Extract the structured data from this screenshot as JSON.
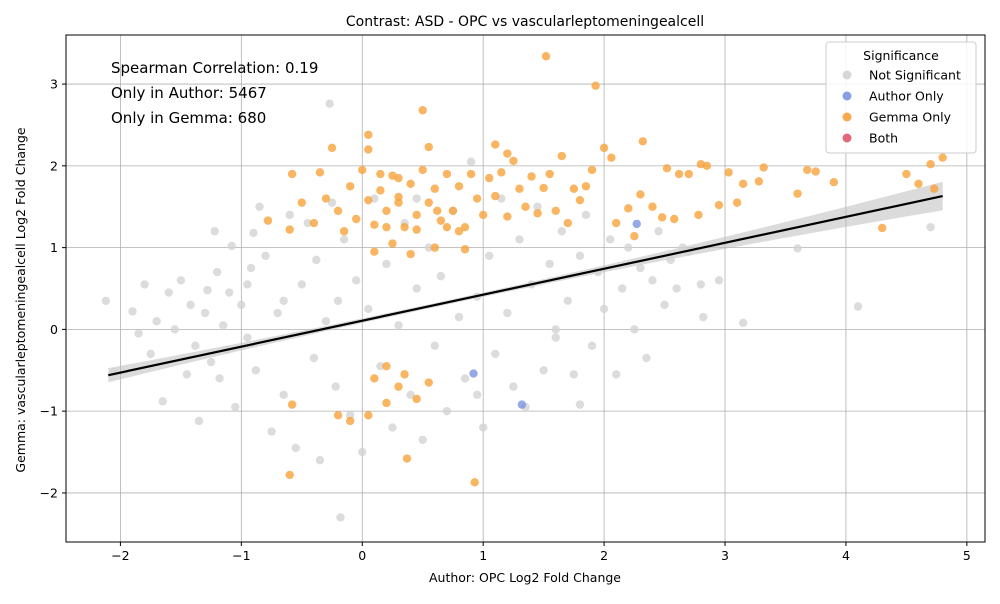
{
  "chart_data": {
    "type": "scatter",
    "title": "Contrast: ASD - OPC vs vascularleptomeningealcell",
    "xlabel": "Author: OPC Log2 Fold Change",
    "ylabel": "Gemma: vascularleptomeningealcell Log2 Fold Change",
    "xlim": [
      -2.45,
      5.15
    ],
    "ylim": [
      -2.6,
      3.6
    ],
    "xticks": [
      {
        "value": -2,
        "label": "−2"
      },
      {
        "value": -1,
        "label": "−1"
      },
      {
        "value": 0,
        "label": "0"
      },
      {
        "value": 1,
        "label": "1"
      },
      {
        "value": 2,
        "label": "2"
      },
      {
        "value": 3,
        "label": "3"
      },
      {
        "value": 4,
        "label": "4"
      },
      {
        "value": 5,
        "label": "5"
      }
    ],
    "yticks": [
      {
        "value": -2,
        "label": "−2"
      },
      {
        "value": -1,
        "label": "−1"
      },
      {
        "value": 0,
        "label": "0"
      },
      {
        "value": 1,
        "label": "1"
      },
      {
        "value": 2,
        "label": "2"
      },
      {
        "value": 3,
        "label": "3"
      }
    ],
    "grid": true,
    "legend": {
      "title": "Significance",
      "position": "top-right",
      "entries": [
        {
          "label": "Not Significant",
          "color": "#d3d3d3"
        },
        {
          "label": "Author Only",
          "color": "#7b93e0"
        },
        {
          "label": "Gemma Only",
          "color": "#f7a23b"
        },
        {
          "label": "Both",
          "color": "#dc5a6e"
        }
      ]
    },
    "annotations": [
      "Spearman Correlation: 0.19",
      "Only in Author: 5467",
      "Only in Gemma: 680"
    ],
    "regression": {
      "color": "#000000",
      "band_color": "#bdbdbd",
      "start": [
        -2.1,
        -0.56
      ],
      "end": [
        4.8,
        1.63
      ]
    },
    "series": [
      {
        "name": "Not Significant",
        "color": "#d3d3d3",
        "points": [
          [
            -2.12,
            0.35
          ],
          [
            -2.05,
            -0.52
          ],
          [
            -1.9,
            0.22
          ],
          [
            -1.85,
            -0.05
          ],
          [
            -1.8,
            0.55
          ],
          [
            -1.75,
            -0.3
          ],
          [
            -1.7,
            0.1
          ],
          [
            -1.65,
            -0.88
          ],
          [
            -1.6,
            0.45
          ],
          [
            -1.55,
            0.0
          ],
          [
            -1.5,
            0.6
          ],
          [
            -1.45,
            -0.55
          ],
          [
            -1.42,
            0.3
          ],
          [
            -1.38,
            -0.2
          ],
          [
            -1.35,
            -1.12
          ],
          [
            -1.3,
            0.2
          ],
          [
            -1.28,
            0.48
          ],
          [
            -1.25,
            -0.4
          ],
          [
            -1.22,
            1.2
          ],
          [
            -1.2,
            0.7
          ],
          [
            -1.18,
            -0.6
          ],
          [
            -1.15,
            0.05
          ],
          [
            -1.12,
            -0.25
          ],
          [
            -1.1,
            0.45
          ],
          [
            -1.08,
            1.02
          ],
          [
            -1.05,
            -0.95
          ],
          [
            -1.0,
            0.3
          ],
          [
            -0.95,
            -0.1
          ],
          [
            -0.92,
            0.75
          ],
          [
            -0.9,
            1.18
          ],
          [
            -0.88,
            -0.5
          ],
          [
            -0.85,
            1.5
          ],
          [
            -0.8,
            0.9
          ],
          [
            -0.75,
            -1.25
          ],
          [
            -0.7,
            0.2
          ],
          [
            -0.65,
            -0.8
          ],
          [
            -0.6,
            1.4
          ],
          [
            -0.55,
            -1.45
          ],
          [
            -0.5,
            0.55
          ],
          [
            -0.45,
            1.3
          ],
          [
            -0.4,
            -0.35
          ],
          [
            -0.38,
            0.85
          ],
          [
            -0.35,
            -1.6
          ],
          [
            -0.3,
            0.1
          ],
          [
            -0.27,
            2.76
          ],
          [
            -0.25,
            1.55
          ],
          [
            -0.22,
            -0.7
          ],
          [
            -0.2,
            0.35
          ],
          [
            -0.18,
            -2.3
          ],
          [
            -0.15,
            1.1
          ],
          [
            -0.1,
            -1.05
          ],
          [
            -0.05,
            0.6
          ],
          [
            0.0,
            -1.5
          ],
          [
            0.05,
            0.25
          ],
          [
            0.1,
            1.6
          ],
          [
            0.15,
            -0.45
          ],
          [
            0.2,
            0.8
          ],
          [
            0.25,
            -1.2
          ],
          [
            0.3,
            0.05
          ],
          [
            0.35,
            1.3
          ],
          [
            0.4,
            -0.8
          ],
          [
            0.45,
            0.5
          ],
          [
            0.5,
            -1.35
          ],
          [
            0.55,
            1.0
          ],
          [
            0.6,
            -0.2
          ],
          [
            0.65,
            0.65
          ],
          [
            0.7,
            -1.0
          ],
          [
            0.75,
            1.45
          ],
          [
            0.8,
            0.15
          ],
          [
            0.85,
            -0.6
          ],
          [
            0.9,
            2.05
          ],
          [
            0.95,
            0.4
          ],
          [
            1.0,
            -1.2
          ],
          [
            1.05,
            0.9
          ],
          [
            1.1,
            -0.3
          ],
          [
            1.15,
            1.6
          ],
          [
            1.2,
            0.2
          ],
          [
            1.25,
            -0.7
          ],
          [
            1.3,
            1.1
          ],
          [
            1.35,
            -0.95
          ],
          [
            1.4,
            0.55
          ],
          [
            1.45,
            1.5
          ],
          [
            1.5,
            -0.5
          ],
          [
            1.55,
            0.8
          ],
          [
            1.6,
            -0.1
          ],
          [
            1.65,
            1.2
          ],
          [
            1.7,
            0.35
          ],
          [
            1.75,
            -0.55
          ],
          [
            1.8,
            0.9
          ],
          [
            1.85,
            1.4
          ],
          [
            1.9,
            -0.2
          ],
          [
            1.95,
            0.7
          ],
          [
            2.0,
            0.25
          ],
          [
            2.05,
            1.1
          ],
          [
            2.1,
            -0.55
          ],
          [
            2.15,
            0.5
          ],
          [
            2.2,
            1.0
          ],
          [
            2.25,
            0.0
          ],
          [
            2.3,
            0.75
          ],
          [
            2.35,
            -0.35
          ],
          [
            2.4,
            0.6
          ],
          [
            2.45,
            1.2
          ],
          [
            2.5,
            0.3
          ],
          [
            2.55,
            0.85
          ],
          [
            2.6,
            0.5
          ],
          [
            2.65,
            1.0
          ],
          [
            2.7,
            0.95
          ],
          [
            2.8,
            0.55
          ],
          [
            2.82,
            0.15
          ],
          [
            2.95,
            0.6
          ],
          [
            3.15,
            0.08
          ],
          [
            3.6,
            0.99
          ],
          [
            4.1,
            0.28
          ],
          [
            4.7,
            1.25
          ],
          [
            1.8,
            -0.92
          ],
          [
            1.6,
            0.0
          ],
          [
            0.95,
            -0.8
          ],
          [
            0.45,
            1.6
          ],
          [
            -0.65,
            0.35
          ],
          [
            -0.95,
            0.55
          ]
        ]
      },
      {
        "name": "Author Only",
        "color": "#7b93e0",
        "points": [
          [
            2.27,
            1.29
          ],
          [
            0.92,
            -0.54
          ],
          [
            1.32,
            -0.92
          ]
        ]
      },
      {
        "name": "Gemma Only",
        "color": "#f7a23b",
        "points": [
          [
            1.52,
            3.34
          ],
          [
            1.93,
            2.98
          ],
          [
            0.5,
            2.68
          ],
          [
            0.05,
            2.38
          ],
          [
            -0.25,
            2.22
          ],
          [
            0.55,
            2.23
          ],
          [
            1.1,
            2.26
          ],
          [
            2.0,
            2.22
          ],
          [
            2.32,
            2.3
          ],
          [
            1.2,
            2.15
          ],
          [
            0.05,
            2.2
          ],
          [
            4.8,
            2.1
          ],
          [
            4.7,
            2.02
          ],
          [
            4.6,
            1.78
          ],
          [
            4.5,
            1.9
          ],
          [
            4.73,
            1.72
          ],
          [
            4.3,
            1.24
          ],
          [
            3.9,
            1.8
          ],
          [
            3.75,
            1.93
          ],
          [
            3.68,
            1.95
          ],
          [
            3.6,
            1.66
          ],
          [
            3.32,
            1.98
          ],
          [
            3.28,
            1.81
          ],
          [
            3.15,
            1.78
          ],
          [
            3.1,
            1.55
          ],
          [
            3.03,
            1.92
          ],
          [
            2.95,
            1.52
          ],
          [
            2.85,
            2.0
          ],
          [
            2.8,
            2.02
          ],
          [
            2.78,
            1.4
          ],
          [
            2.7,
            1.9
          ],
          [
            2.62,
            1.9
          ],
          [
            2.58,
            1.35
          ],
          [
            2.52,
            1.97
          ],
          [
            2.48,
            1.37
          ],
          [
            2.4,
            1.5
          ],
          [
            2.3,
            1.65
          ],
          [
            2.25,
            1.14
          ],
          [
            2.2,
            1.48
          ],
          [
            2.1,
            1.3
          ],
          [
            2.06,
            2.1
          ],
          [
            1.9,
            1.95
          ],
          [
            1.85,
            1.75
          ],
          [
            1.8,
            1.58
          ],
          [
            1.75,
            1.72
          ],
          [
            1.7,
            1.3
          ],
          [
            1.65,
            2.12
          ],
          [
            1.6,
            1.45
          ],
          [
            1.55,
            1.9
          ],
          [
            1.5,
            1.73
          ],
          [
            1.45,
            1.42
          ],
          [
            1.4,
            1.87
          ],
          [
            1.35,
            1.5
          ],
          [
            1.3,
            1.72
          ],
          [
            1.25,
            2.06
          ],
          [
            1.2,
            1.38
          ],
          [
            1.15,
            1.92
          ],
          [
            1.1,
            1.63
          ],
          [
            1.05,
            1.85
          ],
          [
            1.0,
            1.4
          ],
          [
            0.95,
            1.6
          ],
          [
            0.9,
            1.9
          ],
          [
            0.85,
            1.25
          ],
          [
            0.8,
            1.75
          ],
          [
            0.75,
            1.45
          ],
          [
            0.7,
            1.9
          ],
          [
            0.65,
            1.33
          ],
          [
            0.6,
            1.72
          ],
          [
            0.55,
            1.55
          ],
          [
            0.5,
            1.95
          ],
          [
            0.45,
            1.4
          ],
          [
            0.4,
            1.78
          ],
          [
            0.35,
            1.25
          ],
          [
            0.3,
            1.62
          ],
          [
            0.25,
            1.88
          ],
          [
            0.2,
            1.45
          ],
          [
            0.15,
            1.7
          ],
          [
            0.1,
            1.28
          ],
          [
            0.05,
            1.58
          ],
          [
            0.0,
            1.95
          ],
          [
            -0.05,
            1.35
          ],
          [
            -0.1,
            1.75
          ],
          [
            -0.15,
            1.2
          ],
          [
            -0.2,
            1.45
          ],
          [
            -0.3,
            1.6
          ],
          [
            -0.4,
            1.3
          ],
          [
            -0.5,
            1.55
          ],
          [
            -0.6,
            1.22
          ],
          [
            -0.58,
            1.9
          ],
          [
            -0.78,
            1.33
          ],
          [
            -0.35,
            1.92
          ],
          [
            0.2,
            1.25
          ],
          [
            0.45,
            1.22
          ],
          [
            0.8,
            1.2
          ],
          [
            0.3,
            1.85
          ],
          [
            0.7,
            1.25
          ],
          [
            -0.6,
            -1.78
          ],
          [
            0.93,
            -1.87
          ],
          [
            0.37,
            -1.58
          ],
          [
            -0.2,
            -1.05
          ],
          [
            0.05,
            -1.05
          ],
          [
            -0.1,
            -1.12
          ],
          [
            -0.58,
            -0.92
          ],
          [
            0.2,
            -0.9
          ],
          [
            0.45,
            -0.85
          ],
          [
            0.3,
            -0.7
          ],
          [
            0.1,
            -0.6
          ],
          [
            0.35,
            -0.55
          ],
          [
            0.55,
            -0.65
          ],
          [
            0.2,
            -0.45
          ],
          [
            0.1,
            0.95
          ],
          [
            0.25,
            1.05
          ],
          [
            0.4,
            0.92
          ],
          [
            0.6,
            1.0
          ],
          [
            0.85,
            0.98
          ],
          [
            0.3,
            1.55
          ],
          [
            0.62,
            1.45
          ],
          [
            0.15,
            1.9
          ]
        ]
      }
    ]
  }
}
